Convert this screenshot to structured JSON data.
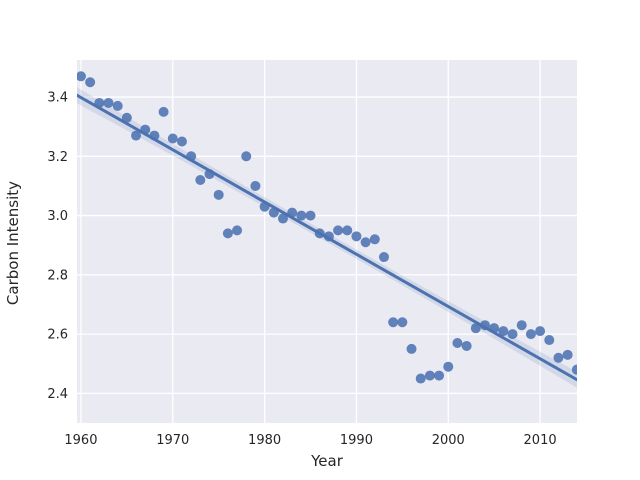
{
  "colors": {
    "plot_background": "#EAEAF2",
    "grid": "#FFFFFF",
    "point": "#4C72B0",
    "line": "#4C72B0",
    "band": "#4C72B0",
    "text": "#262626"
  },
  "chart_data": {
    "type": "scatter",
    "title": "",
    "xlabel": "Year",
    "ylabel": "Carbon Intensity",
    "xlim": [
      1959.57,
      2014.02
    ],
    "ylim": [
      2.3,
      3.525
    ],
    "grid": true,
    "legend": false,
    "xtick_values": [
      1960,
      1970,
      1980,
      1990,
      2000,
      2010
    ],
    "xtick_labels": [
      "1960",
      "1970",
      "1980",
      "1990",
      "2000",
      "2010"
    ],
    "ytick_values": [
      2.4,
      2.6,
      2.8,
      3.0,
      3.2,
      3.4
    ],
    "ytick_labels": [
      "2.4",
      "2.6",
      "2.8",
      "3.0",
      "3.2",
      "3.4"
    ],
    "x": [
      1960,
      1961,
      1962,
      1963,
      1964,
      1965,
      1966,
      1967,
      1968,
      1969,
      1970,
      1971,
      1972,
      1973,
      1974,
      1975,
      1976,
      1977,
      1978,
      1979,
      1980,
      1981,
      1982,
      1983,
      1984,
      1985,
      1986,
      1987,
      1988,
      1989,
      1990,
      1991,
      1992,
      1993,
      1994,
      1995,
      1996,
      1997,
      1998,
      1999,
      2000,
      2001,
      2002,
      2003,
      2004,
      2005,
      2006,
      2007,
      2008,
      2009,
      2010,
      2011,
      2012,
      2013,
      2014
    ],
    "y": [
      3.47,
      3.45,
      3.38,
      3.38,
      3.37,
      3.33,
      3.27,
      3.29,
      3.27,
      3.35,
      3.26,
      3.25,
      3.2,
      3.12,
      3.14,
      3.07,
      2.94,
      2.95,
      3.2,
      3.1,
      3.03,
      3.01,
      2.99,
      3.01,
      3.0,
      3.0,
      2.94,
      2.93,
      2.95,
      2.95,
      2.93,
      2.91,
      2.92,
      2.86,
      2.64,
      2.64,
      2.55,
      2.45,
      2.46,
      2.46,
      2.49,
      2.57,
      2.56,
      2.62,
      2.63,
      2.62,
      2.61,
      2.6,
      2.63,
      2.6,
      2.61,
      2.58,
      2.52,
      2.53,
      2.48
    ],
    "trendline": {
      "type": "linear",
      "x_start": 1959.57,
      "x_end": 2014.02,
      "y_start": 3.406,
      "y_end": 2.446,
      "slope_per_year": -0.0176
    }
  }
}
